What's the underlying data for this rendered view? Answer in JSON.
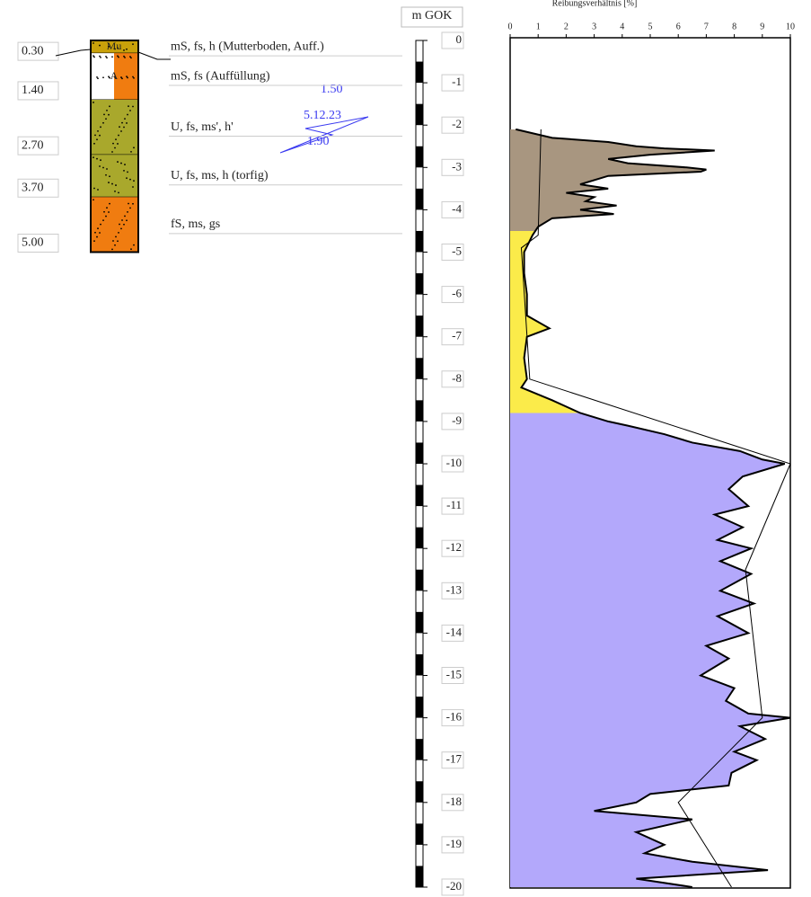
{
  "borehole": {
    "layers": [
      {
        "bottom": {
          "value": 0.3,
          "label": "0.30"
        },
        "code": "Mu",
        "color": "#c9a10a",
        "description": "mS, fs, h (Mutterboden, Auff.)"
      },
      {
        "bottom": {
          "value": 1.4,
          "label": "1.40"
        },
        "code": "A",
        "color": "#ffffff",
        "color2": "#f07c10",
        "description": "mS, fs (Auffüllung)"
      },
      {
        "bottom": {
          "value": 2.7,
          "label": "2.70"
        },
        "color": "#a9a82c",
        "description": "U, fs, ms', h'"
      },
      {
        "bottom": {
          "value": 3.7,
          "label": "3.70"
        },
        "color": "#a9a82c",
        "description": "U, fs, ms, h (torfig)"
      },
      {
        "bottom": {
          "value": 5.0,
          "label": "5.00"
        },
        "color": "#f07c10",
        "description": "fS, ms, gs"
      }
    ],
    "water": {
      "level1": "1.50",
      "date": "5.12.23",
      "level2": "1.90"
    }
  },
  "chart_data": {
    "type": "line",
    "title": "Reibungsverhältnis [%]",
    "depth_label": "m GOK",
    "xlim": [
      0,
      10
    ],
    "xticks": [
      0,
      1,
      2,
      3,
      4,
      5,
      6,
      7,
      8,
      9,
      10
    ],
    "ylim": [
      0,
      -20
    ],
    "yticks": [
      0,
      -1,
      -2,
      -3,
      -4,
      -5,
      -6,
      -7,
      -8,
      -9,
      -10,
      -11,
      -12,
      -13,
      -14,
      -15,
      -16,
      -17,
      -18,
      -19,
      -20
    ],
    "zones": [
      {
        "from": -2.1,
        "to": -4.5,
        "color": "#a89680"
      },
      {
        "from": -4.5,
        "to": -8.8,
        "color": "#fbeb4a"
      },
      {
        "from": -8.8,
        "to": -20,
        "color": "#b3a8fb"
      }
    ],
    "profile": {
      "depth": [
        -2.1,
        -2.3,
        -2.4,
        -2.5,
        -2.55,
        -2.6,
        -2.7,
        -2.8,
        -2.9,
        -3.0,
        -3.05,
        -3.1,
        -3.2,
        -3.4,
        -3.5,
        -3.6,
        -3.7,
        -3.8,
        -3.9,
        -4.0,
        -4.1,
        -4.2,
        -4.4,
        -4.6,
        -5.0,
        -5.5,
        -6.0,
        -6.5,
        -6.8,
        -7.0,
        -7.5,
        -8.0,
        -8.2,
        -8.5,
        -8.8,
        -9.0,
        -9.1,
        -9.3,
        -9.5,
        -9.7,
        -9.9,
        -10.0,
        -10.3,
        -10.6,
        -11.0,
        -11.2,
        -11.5,
        -11.8,
        -12.0,
        -12.3,
        -12.6,
        -13.0,
        -13.3,
        -13.6,
        -14.0,
        -14.3,
        -14.6,
        -15.0,
        -15.3,
        -15.6,
        -15.9,
        -16.0,
        -16.2,
        -16.5,
        -16.8,
        -17.0,
        -17.3,
        -17.6,
        -17.8,
        -18.0,
        -18.2,
        -18.4,
        -18.7,
        -19.0,
        -19.2,
        -19.4,
        -19.6,
        -19.8,
        -20.0
      ],
      "values": [
        0.2,
        1.5,
        3.5,
        4.5,
        5.5,
        7.3,
        5.0,
        3.5,
        4.2,
        6.3,
        7.0,
        6.8,
        3.5,
        2.5,
        3.5,
        2.0,
        3.0,
        2.7,
        3.8,
        2.5,
        3.7,
        1.5,
        1.0,
        0.8,
        0.5,
        0.5,
        0.6,
        0.6,
        1.4,
        0.6,
        0.5,
        0.6,
        0.4,
        1.5,
        2.5,
        3.5,
        4.2,
        5.5,
        6.5,
        8.2,
        9.0,
        9.8,
        8.3,
        7.8,
        8.5,
        7.3,
        8.3,
        7.4,
        8.6,
        7.5,
        8.6,
        7.5,
        8.7,
        7.4,
        8.5,
        7.0,
        7.8,
        6.8,
        8.0,
        7.7,
        8.5,
        10.0,
        8.2,
        9.1,
        8.0,
        8.8,
        7.9,
        7.8,
        5.0,
        4.5,
        3.0,
        6.5,
        4.5,
        5.5,
        4.8,
        6.5,
        9.2,
        4.5,
        6.5
      ]
    },
    "trend": {
      "depth": [
        -2.1,
        -4.6,
        -4.9,
        -8.0,
        -10.0,
        -12.5,
        -16.0,
        -18.0,
        -20.0
      ],
      "values": [
        1.1,
        1.0,
        0.4,
        0.7,
        10,
        8.4,
        9.0,
        6.0,
        7.9
      ]
    }
  }
}
